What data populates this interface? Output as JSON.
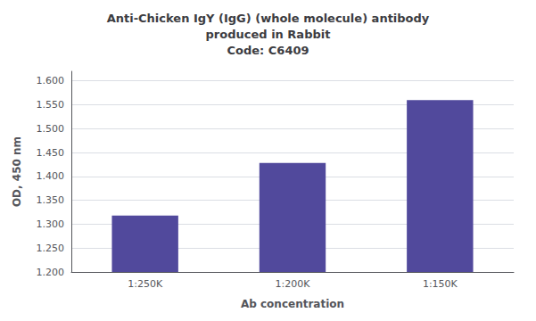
{
  "chart_data": {
    "type": "bar",
    "title": "Anti-Chicken IgY (IgG) (whole molecule) antibody\nproduced in Rabbit\nCode: C6409",
    "xlabel": "Ab concentration",
    "ylabel": "OD, 450 nm",
    "categories": [
      "1:250K",
      "1:200K",
      "1:150K"
    ],
    "values": [
      1.318,
      1.428,
      1.56
    ],
    "color": "#51499C",
    "ylim": [
      1.2,
      1.62
    ],
    "yticks": [
      {
        "value": 1.2,
        "label": "1.200"
      },
      {
        "value": 1.25,
        "label": "1.250"
      },
      {
        "value": 1.3,
        "label": "1.300"
      },
      {
        "value": 1.35,
        "label": "1.350"
      },
      {
        "value": 1.4,
        "label": "1.400"
      },
      {
        "value": 1.45,
        "label": "1.450"
      },
      {
        "value": 1.5,
        "label": "1.500"
      },
      {
        "value": 1.55,
        "label": "1.550"
      },
      {
        "value": 1.6,
        "label": "1.600"
      }
    ],
    "grid": true
  }
}
